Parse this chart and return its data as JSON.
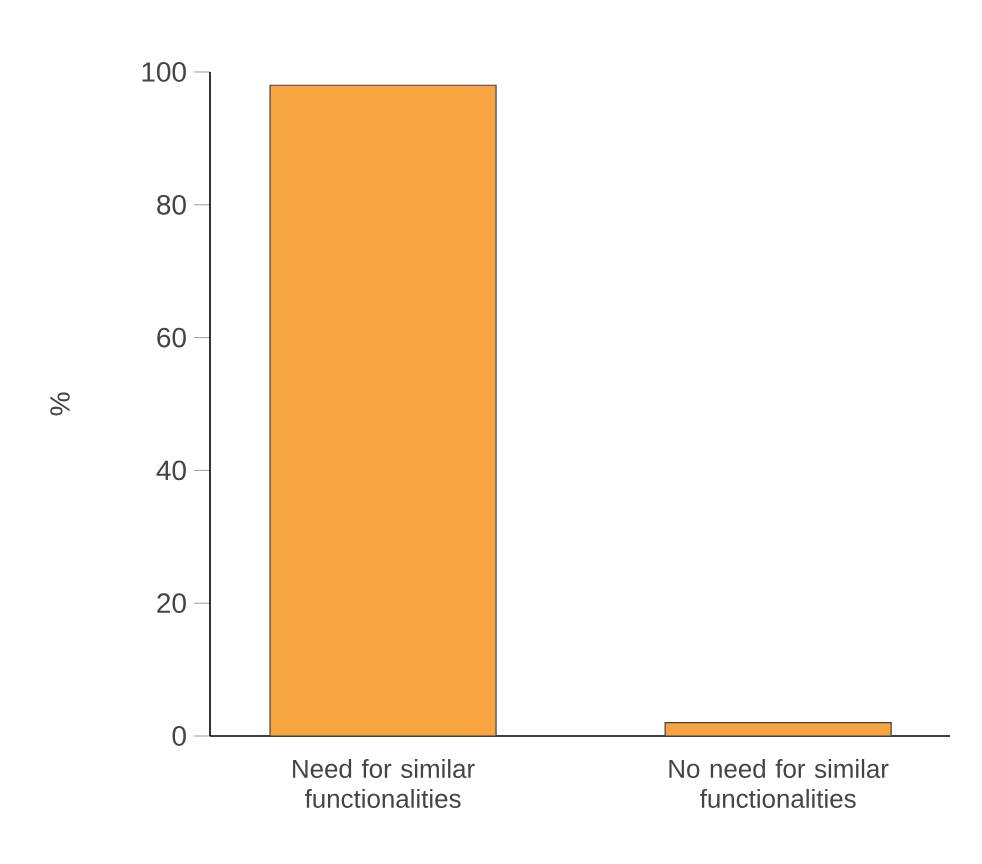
{
  "chart_data": {
    "type": "bar",
    "ylabel": "%",
    "categories": [
      "Need for similar functionalities",
      "No need for similar functionalities"
    ],
    "values": [
      98,
      2
    ],
    "color": "#f7a540",
    "ylim": [
      0,
      100
    ],
    "yticks": [
      0,
      20,
      40,
      60,
      80,
      100
    ],
    "grid": false
  }
}
